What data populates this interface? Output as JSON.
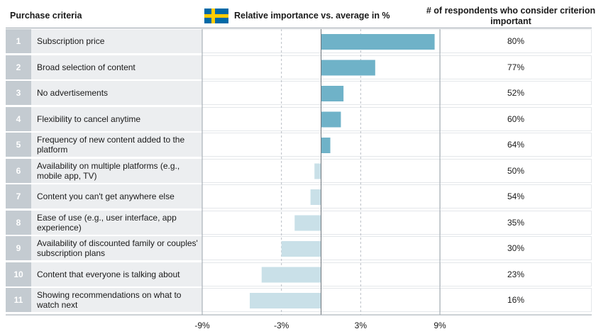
{
  "header": {
    "criteria": "Purchase criteria",
    "importance": "Relative importance vs. average in %",
    "respondents": "# of respondents who consider criterion important",
    "flag_icon": "sweden-flag-icon"
  },
  "colors": {
    "positive_bar": "#6fb2c8",
    "negative_bar": "#c9e0e8",
    "flag_blue": "#006aa7",
    "flag_yellow": "#fecc00"
  },
  "chart_data": {
    "type": "bar",
    "orientation": "horizontal",
    "title": "Relative importance vs. average in %",
    "xlim": [
      -9,
      9
    ],
    "xticks": [
      "-9%",
      "-3%",
      "3%",
      "9%"
    ],
    "grid": "dashed vertical at -3 and 3",
    "categories": [
      {
        "rank": "1",
        "label": "Subscription price",
        "value": 8.6,
        "respondents": "80%"
      },
      {
        "rank": "2",
        "label": "Broad selection of content",
        "value": 4.1,
        "respondents": "77%"
      },
      {
        "rank": "3",
        "label": "No advertisements",
        "value": 1.7,
        "respondents": "52%"
      },
      {
        "rank": "4",
        "label": "Flexibility to cancel anytime",
        "value": 1.5,
        "respondents": "60%"
      },
      {
        "rank": "5",
        "label": "Frequency of new content added to the platform",
        "value": 0.7,
        "respondents": "64%"
      },
      {
        "rank": "6",
        "label": "Availability on multiple platforms (e.g., mobile app, TV)",
        "value": -0.5,
        "respondents": "50%"
      },
      {
        "rank": "7",
        "label": "Content you can't get anywhere else",
        "value": -0.8,
        "respondents": "54%"
      },
      {
        "rank": "8",
        "label": "Ease of use (e.g., user interface, app experience)",
        "value": -2.0,
        "respondents": "35%"
      },
      {
        "rank": "9",
        "label": "Availability of discounted family or couples' subscription plans",
        "value": -3.0,
        "respondents": "30%"
      },
      {
        "rank": "10",
        "label": "Content that everyone is talking about",
        "value": -4.5,
        "respondents": "23%"
      },
      {
        "rank": "11",
        "label": "Showing recommendations on what to watch next",
        "value": -5.4,
        "respondents": "16%"
      }
    ]
  }
}
